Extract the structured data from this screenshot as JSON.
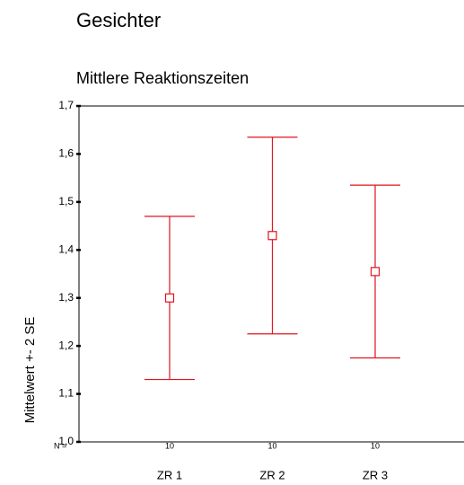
{
  "chart_data": {
    "type": "errorbar",
    "title": "Gesichter",
    "subtitle": "Mittlere Reaktionszeiten",
    "y_label": "Mittelwert +- 2 SE",
    "categories": [
      "ZR 1",
      "ZR 2",
      "ZR 3"
    ],
    "values": [
      1.3,
      1.43,
      1.355
    ],
    "errors": [
      0.17,
      0.205,
      0.18
    ],
    "n_label": "N =",
    "n": [
      10,
      10,
      10
    ],
    "color": "#e0141e",
    "ylim": [
      1.0,
      1.7
    ],
    "yticks": [
      {
        "value": 1.0,
        "label": "1,0"
      },
      {
        "value": 1.1,
        "label": "1,1"
      },
      {
        "value": 1.2,
        "label": "1,2"
      },
      {
        "value": 1.3,
        "label": "1,3"
      },
      {
        "value": 1.4,
        "label": "1,4"
      },
      {
        "value": 1.5,
        "label": "1,5"
      },
      {
        "value": 1.6,
        "label": "1,6"
      },
      {
        "value": 1.7,
        "label": "1,7"
      }
    ]
  }
}
